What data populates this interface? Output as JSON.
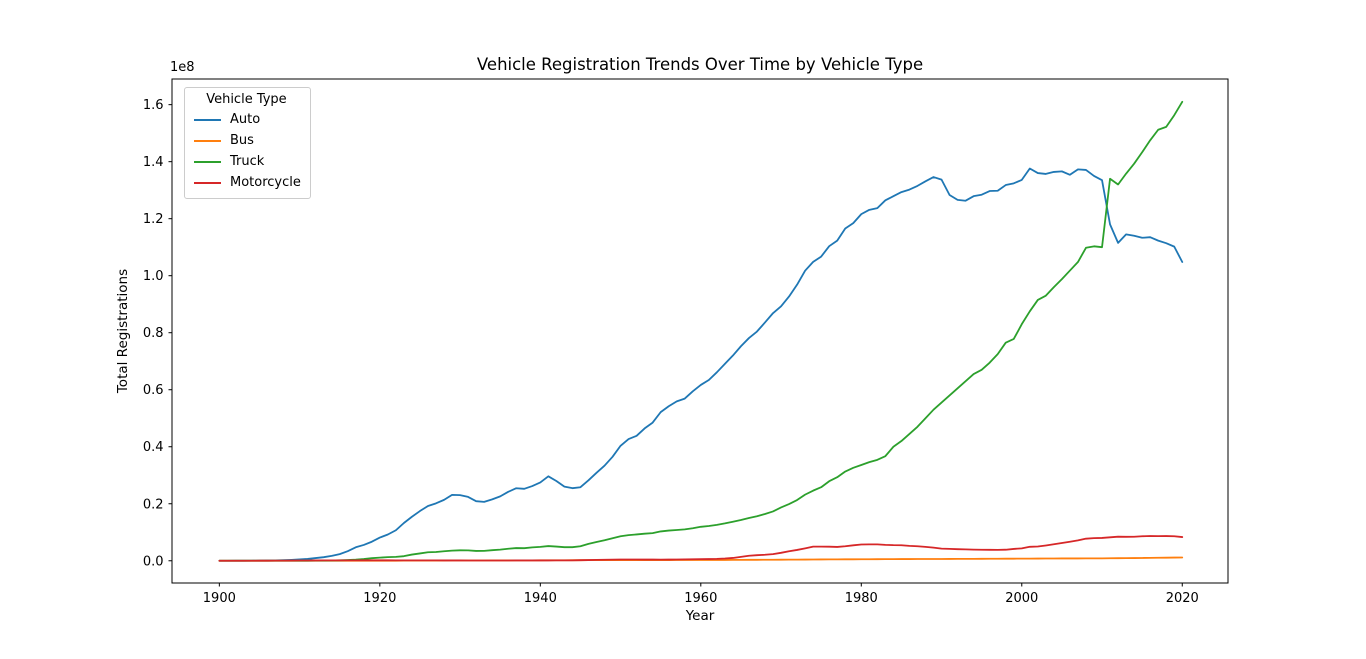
{
  "figure": {
    "background": "#ffffff",
    "spine_color": "#000000"
  },
  "chart_data": {
    "type": "line",
    "title": "Vehicle Registration Trends Over Time by Vehicle Type",
    "xlabel": "Year",
    "ylabel": "Total Registrations",
    "y_offset_label": "1e8",
    "legend_title": "Vehicle Type",
    "legend_position": "upper left",
    "grid": false,
    "unit": "millions of registrations (axis shown in 1e8 units)",
    "x_start": 1900,
    "x_step": 1,
    "xlim": [
      1894.1,
      2025.7
    ],
    "ylim_1e8": [
      -0.078,
      1.69
    ],
    "x_ticks": [
      1900,
      1920,
      1940,
      1960,
      1980,
      2000,
      2020
    ],
    "y_ticks_1e8": [
      0.0,
      0.2,
      0.4,
      0.6,
      0.8,
      1.0,
      1.2,
      1.4,
      1.6
    ],
    "series": [
      {
        "name": "Auto",
        "color": "#1f77b4",
        "values": [
          0.008,
          0.015,
          0.023,
          0.033,
          0.055,
          0.078,
          0.108,
          0.14,
          0.198,
          0.31,
          0.458,
          0.64,
          0.944,
          1.258,
          1.711,
          2.332,
          3.368,
          4.727,
          5.555,
          6.679,
          8.132,
          9.212,
          10.704,
          13.253,
          15.436,
          17.44,
          19.221,
          20.142,
          21.362,
          23.121,
          23.035,
          22.396,
          20.901,
          20.657,
          21.545,
          22.588,
          24.182,
          25.443,
          25.25,
          26.201,
          27.466,
          29.624,
          27.973,
          26.009,
          25.467,
          25.793,
          28.217,
          30.849,
          33.355,
          36.458,
          40.339,
          42.688,
          43.823,
          46.429,
          48.468,
          52.145,
          54.211,
          55.918,
          56.891,
          59.454,
          61.682,
          63.417,
          66.108,
          69.055,
          71.983,
          75.258,
          78.123,
          80.414,
          83.598,
          86.861,
          89.244,
          92.718,
          96.86,
          101.762,
          104.856,
          106.706,
          110.351,
          112.288,
          116.573,
          118.429,
          121.601,
          123.098,
          123.702,
          126.444,
          127.885,
          129.329,
          130.2,
          131.5,
          133.1,
          134.6,
          133.7,
          128.3,
          126.6,
          126.3,
          127.9,
          128.4,
          129.7,
          129.8,
          131.8,
          132.4,
          133.6,
          137.6,
          136.0,
          135.7,
          136.4,
          136.6,
          135.4,
          137.3,
          137.1,
          135.0,
          133.5,
          118.0,
          111.5,
          114.5,
          114.0,
          113.3,
          113.5,
          112.3,
          111.4,
          110.2,
          104.8
        ]
      },
      {
        "name": "Bus",
        "color": "#ff7f0e",
        "values": [
          0.0,
          0.0,
          0.0,
          0.001,
          0.001,
          0.001,
          0.001,
          0.002,
          0.002,
          0.002,
          0.003,
          0.004,
          0.005,
          0.007,
          0.008,
          0.01,
          0.012,
          0.013,
          0.015,
          0.016,
          0.018,
          0.024,
          0.03,
          0.037,
          0.043,
          0.05,
          0.058,
          0.066,
          0.074,
          0.082,
          0.09,
          0.094,
          0.098,
          0.102,
          0.106,
          0.11,
          0.12,
          0.13,
          0.14,
          0.15,
          0.16,
          0.17,
          0.18,
          0.19,
          0.2,
          0.21,
          0.216,
          0.222,
          0.228,
          0.234,
          0.24,
          0.242,
          0.244,
          0.246,
          0.248,
          0.25,
          0.254,
          0.259,
          0.263,
          0.268,
          0.272,
          0.28,
          0.289,
          0.297,
          0.306,
          0.314,
          0.327,
          0.34,
          0.353,
          0.366,
          0.379,
          0.396,
          0.412,
          0.429,
          0.445,
          0.462,
          0.475,
          0.489,
          0.502,
          0.516,
          0.529,
          0.542,
          0.555,
          0.567,
          0.58,
          0.593,
          0.6,
          0.607,
          0.613,
          0.62,
          0.627,
          0.639,
          0.651,
          0.662,
          0.674,
          0.686,
          0.698,
          0.71,
          0.722,
          0.734,
          0.746,
          0.758,
          0.77,
          0.783,
          0.795,
          0.807,
          0.815,
          0.823,
          0.831,
          0.838,
          0.846,
          0.873,
          0.9,
          0.927,
          0.953,
          0.98,
          1.014,
          1.048,
          1.082,
          1.116,
          1.15
        ]
      },
      {
        "name": "Truck",
        "color": "#2ca02c",
        "values": [
          0.0,
          0.001,
          0.001,
          0.002,
          0.002,
          0.003,
          0.004,
          0.005,
          0.006,
          0.008,
          0.01,
          0.02,
          0.042,
          0.068,
          0.099,
          0.158,
          0.25,
          0.391,
          0.605,
          0.898,
          1.108,
          1.282,
          1.375,
          1.612,
          2.177,
          2.57,
          2.984,
          3.082,
          3.33,
          3.55,
          3.675,
          3.656,
          3.443,
          3.459,
          3.712,
          3.919,
          4.23,
          4.46,
          4.41,
          4.7,
          4.886,
          5.15,
          4.99,
          4.77,
          4.77,
          5.08,
          5.93,
          6.6,
          7.2,
          7.9,
          8.598,
          9.0,
          9.23,
          9.5,
          9.7,
          10.289,
          10.6,
          10.8,
          11.0,
          11.4,
          11.914,
          12.2,
          12.6,
          13.1,
          13.7,
          14.3,
          15.0,
          15.6,
          16.4,
          17.3,
          18.7,
          19.9,
          21.3,
          23.2,
          24.6,
          25.8,
          27.9,
          29.3,
          31.3,
          32.6,
          33.6,
          34.6,
          35.4,
          36.7,
          40.0,
          42.0,
          44.5,
          47.0,
          50.0,
          53.0,
          55.5,
          58.0,
          60.5,
          63.0,
          65.5,
          67.0,
          69.5,
          72.5,
          76.5,
          77.8,
          83.0,
          87.5,
          91.5,
          93.0,
          96.0,
          98.8,
          101.8,
          104.8,
          109.8,
          110.3,
          110.0,
          134.0,
          132.0,
          135.8,
          139.3,
          143.3,
          147.5,
          151.2,
          152.2,
          156.3,
          161.0
        ]
      },
      {
        "name": "Motorcycle",
        "color": "#d62728",
        "values": [
          0.0,
          0.002,
          0.005,
          0.01,
          0.015,
          0.02,
          0.03,
          0.04,
          0.055,
          0.07,
          0.086,
          0.1,
          0.115,
          0.125,
          0.13,
          0.135,
          0.14,
          0.15,
          0.155,
          0.158,
          0.16,
          0.155,
          0.15,
          0.145,
          0.14,
          0.135,
          0.13,
          0.125,
          0.12,
          0.115,
          0.11,
          0.105,
          0.1,
          0.098,
          0.1,
          0.102,
          0.105,
          0.108,
          0.11,
          0.112,
          0.115,
          0.12,
          0.125,
          0.13,
          0.15,
          0.198,
          0.25,
          0.3,
          0.35,
          0.4,
          0.454,
          0.45,
          0.44,
          0.43,
          0.42,
          0.412,
          0.43,
          0.45,
          0.48,
          0.52,
          0.574,
          0.6,
          0.66,
          0.786,
          0.984,
          1.382,
          1.753,
          1.953,
          2.1,
          2.316,
          2.79,
          3.337,
          3.797,
          4.357,
          4.966,
          4.964,
          4.933,
          4.856,
          5.08,
          5.42,
          5.694,
          5.758,
          5.76,
          5.585,
          5.479,
          5.444,
          5.223,
          5.1,
          4.88,
          4.6,
          4.259,
          4.177,
          4.065,
          3.991,
          3.913,
          3.87,
          3.85,
          3.826,
          3.879,
          4.152,
          4.346,
          4.903,
          5.004,
          5.37,
          5.781,
          6.227,
          6.686,
          7.138,
          7.752,
          7.929,
          8.01,
          8.23,
          8.454,
          8.404,
          8.417,
          8.6,
          8.679,
          8.65,
          8.666,
          8.596,
          8.32
        ]
      }
    ]
  }
}
